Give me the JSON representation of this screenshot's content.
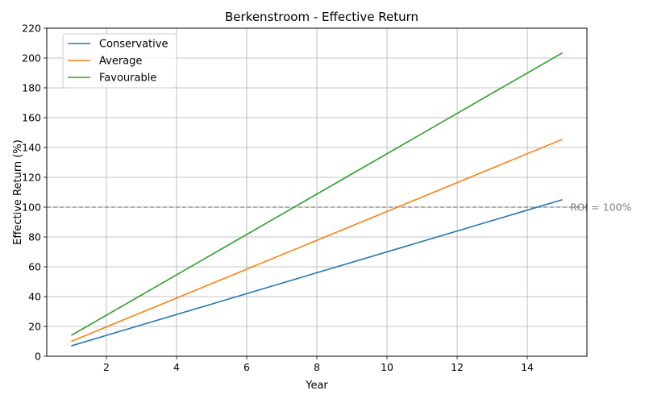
{
  "chart_data": {
    "type": "line",
    "title": "Berkenstroom - Effective Return",
    "xlabel": "Year",
    "ylabel": "Effective Return (%)",
    "x": [
      1,
      15
    ],
    "xlim": [
      0.3,
      15.7
    ],
    "ylim": [
      0,
      220
    ],
    "xticks": [
      2,
      4,
      6,
      8,
      10,
      12,
      14
    ],
    "yticks": [
      0,
      20,
      40,
      60,
      80,
      100,
      120,
      140,
      160,
      180,
      200,
      220
    ],
    "grid": true,
    "legend_position": "top-left",
    "series": [
      {
        "name": "Conservative",
        "color": "#1f77b4",
        "values": [
          7,
          105
        ]
      },
      {
        "name": "Average",
        "color": "#ff7f0e",
        "values": [
          10,
          145.5
        ]
      },
      {
        "name": "Favourable",
        "color": "#2ca02c",
        "values": [
          14,
          203.5
        ]
      }
    ],
    "reference_line": {
      "y": 100,
      "label": "ROI = 100%",
      "color": "#808080"
    }
  }
}
